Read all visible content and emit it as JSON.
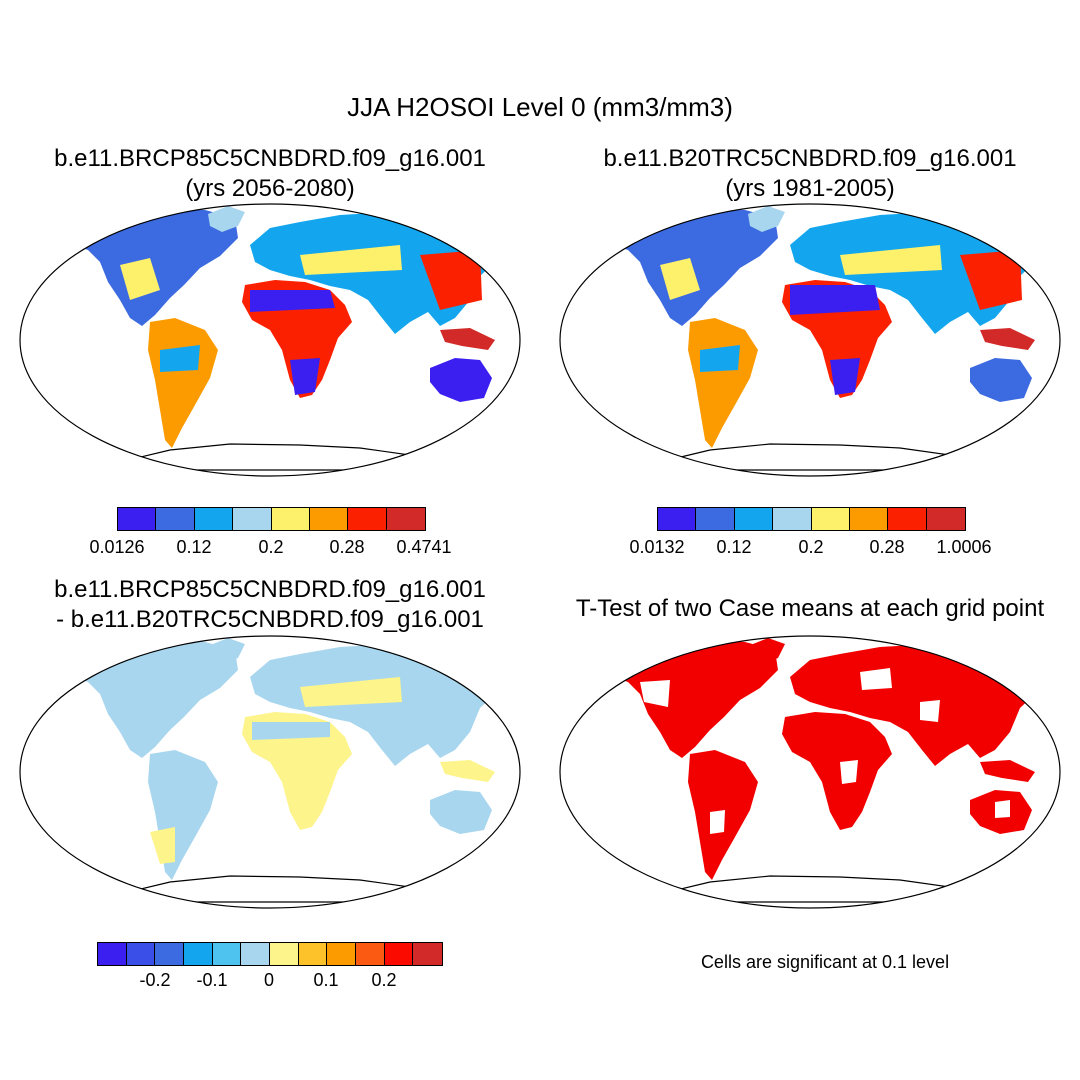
{
  "figure": {
    "title": "JJA H2OSOI Level 0 (mm3/mm3)"
  },
  "panels": [
    {
      "title_line1": "b.e11.BRCP85C5CNBDRD.f09_g16.001",
      "title_line2": "(yrs 2056-2080)",
      "colorbar": {
        "colors": [
          "#3a1ff0",
          "#3c6ae0",
          "#13a6ee",
          "#a8d6ee",
          "#fdf16c",
          "#fc9b00",
          "#fb2000",
          "#d22a28"
        ],
        "tick_labels": [
          "0.0126",
          "0.12",
          "0.2",
          "0.28",
          "0.4741"
        ]
      }
    },
    {
      "title_line1": "b.e11.B20TRC5CNBDRD.f09_g16.001",
      "title_line2": "(yrs 1981-2005)",
      "colorbar": {
        "colors": [
          "#3a1ff0",
          "#3c6ae0",
          "#13a6ee",
          "#a8d6ee",
          "#fdf16c",
          "#fc9b00",
          "#fb2000",
          "#d22a28"
        ],
        "tick_labels": [
          "0.0132",
          "0.12",
          "0.2",
          "0.28",
          "1.0006"
        ]
      }
    },
    {
      "title_line1": "b.e11.BRCP85C5CNBDRD.f09_g16.001",
      "title_line2": "- b.e11.B20TRC5CNBDRD.f09_g16.001",
      "colorbar": {
        "colors": [
          "#3a1ff0",
          "#3a4fe8",
          "#3c6ae0",
          "#13a6ee",
          "#4fc3f0",
          "#a8d6ee",
          "#fdf48c",
          "#fdc22a",
          "#fc9b00",
          "#fb5a12",
          "#fb0a00",
          "#d22a28"
        ],
        "tick_labels": [
          "-0.2",
          "-0.1",
          "0",
          "0.1",
          "0.2"
        ]
      }
    },
    {
      "title_line1": "T-Test of two Case means at each grid point",
      "note": "Cells are significant at 0.1 level"
    }
  ]
}
